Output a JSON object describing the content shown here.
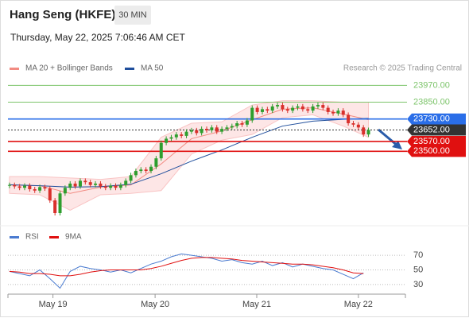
{
  "header": {
    "title": "Hang Seng (HKFE)",
    "interval": "30 MIN",
    "datetime": "Thursday, May 22, 2025 7:06:46 AM CET"
  },
  "chart_data": {
    "type": "candlestick",
    "legend": [
      {
        "name": "MA 20 + Bollinger Bands",
        "color": "#f28b82"
      },
      {
        "name": "MA 50",
        "color": "#1f4e9c"
      }
    ],
    "credit": "Research © 2025 Trading Central",
    "ylim": [
      22975,
      24040
    ],
    "xlim": [
      -0.3,
      78.3
    ],
    "xticks": [
      {
        "value": 8.6,
        "label": "May 19"
      },
      {
        "value": 28.8,
        "label": "May 20"
      },
      {
        "value": 48.9,
        "label": "May 21"
      },
      {
        "value": 69,
        "label": "May 22"
      }
    ],
    "closes": [
      23260,
      23250,
      23240,
      23255,
      23230,
      23220,
      23245,
      23235,
      23150,
      23060,
      23200,
      23240,
      23270,
      23250,
      23290,
      23280,
      23260,
      23270,
      23250,
      23240,
      23255,
      23240,
      23260,
      23290,
      23330,
      23360,
      23370,
      23360,
      23390,
      23450,
      23560,
      23590,
      23600,
      23620,
      23610,
      23640,
      23650,
      23630,
      23660,
      23650,
      23670,
      23640,
      23660,
      23670,
      23680,
      23700,
      23690,
      23720,
      23810,
      23780,
      23800,
      23790,
      23820,
      23830,
      23800,
      23790,
      23810,
      23820,
      23800,
      23790,
      23820,
      23830,
      23810,
      23780,
      23770,
      23790,
      23760,
      23700,
      23690,
      23670,
      23620,
      23652
    ],
    "up_color": "#2e9e2e",
    "down_color": "#d9302c",
    "ind_x": [
      0,
      6,
      12,
      18,
      24,
      30,
      36,
      42,
      48,
      54,
      60,
      66,
      71
    ],
    "ma50": [
      23262,
      23255,
      23245,
      23248,
      23265,
      23340,
      23430,
      23510,
      23600,
      23680,
      23715,
      23728,
      23735
    ],
    "ma20": [
      23260,
      23255,
      23200,
      23245,
      23260,
      23410,
      23590,
      23645,
      23725,
      23800,
      23810,
      23765,
      23725
    ],
    "bb_upper": [
      23320,
      23320,
      23310,
      23300,
      23320,
      23600,
      23700,
      23710,
      23830,
      23860,
      23860,
      23850,
      23850
    ],
    "bb_lower": [
      23200,
      23190,
      23080,
      23190,
      23200,
      23220,
      23480,
      23580,
      23620,
      23740,
      23760,
      23680,
      23600
    ],
    "levels": [
      {
        "value": 23970,
        "label": "23970.00",
        "color": "#7cc46a",
        "box": false
      },
      {
        "value": 23850,
        "label": "23850.00",
        "color": "#7cc46a",
        "box": false
      },
      {
        "value": 23730,
        "label": "23730.00",
        "color": "#2a6ee8",
        "box": true
      },
      {
        "value": 23652,
        "label": "23652.00",
        "color": "#333333",
        "box": true,
        "dashed": true
      },
      {
        "value": 23570,
        "label": "23570.00",
        "color": "#e01010",
        "box": true
      },
      {
        "value": 23500,
        "label": "23500.00",
        "color": "#e01010",
        "box": true
      }
    ],
    "rsi": {
      "legend": [
        {
          "name": "RSI",
          "color": "#4a7bd0"
        },
        {
          "name": "9MA",
          "color": "#e01010"
        }
      ],
      "ylim": [
        19,
        80
      ],
      "yticks": [
        30,
        50,
        70
      ],
      "x": [
        0,
        2,
        4,
        6,
        8,
        10,
        12,
        14,
        16,
        18,
        20,
        22,
        24,
        26,
        28,
        30,
        32,
        34,
        36,
        38,
        40,
        42,
        44,
        46,
        48,
        50,
        52,
        54,
        56,
        58,
        60,
        62,
        64,
        66,
        68,
        70
      ],
      "rsi": [
        48,
        45,
        42,
        50,
        38,
        25,
        48,
        55,
        52,
        50,
        47,
        50,
        46,
        52,
        58,
        62,
        68,
        72,
        70,
        68,
        66,
        62,
        64,
        60,
        58,
        62,
        56,
        60,
        54,
        58,
        55,
        52,
        50,
        44,
        38,
        46
      ],
      "ma9": [
        48,
        47,
        45,
        45,
        44,
        42,
        42,
        44,
        47,
        49,
        50,
        50,
        50,
        50,
        52,
        55,
        59,
        63,
        66,
        67,
        67,
        66,
        65,
        63,
        62,
        61,
        60,
        59,
        58,
        58,
        57,
        55,
        53,
        50,
        46,
        45
      ]
    }
  }
}
